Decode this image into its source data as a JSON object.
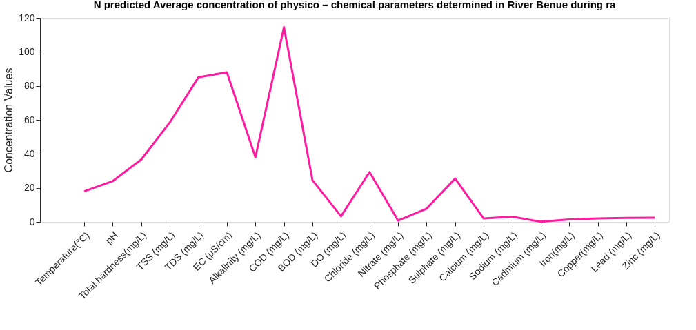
{
  "chart_data": {
    "type": "line",
    "title": "N predicted Average concentration of physico – chemical parameters determined in River Benue during ra",
    "ylabel": "Concentration Values",
    "categories": [
      "Temperature(°C)",
      "pH",
      "Total hardness(mg/L)",
      "TSS (mg/L)",
      "TDS (mg/L)",
      "EC (µS/cm)",
      "Alkalinity (mg/L)",
      "COD (mg/L)",
      "BOD (mg/L)",
      "DO (mg/L)",
      "Chloride (mg/L)",
      "Nitrate (mg/L)",
      "Phosphate (mg/L)",
      "Sulphate (mg/L)",
      "Calcium (mg/L)",
      "Sodium (mg/L)",
      "Cadmium (mg/L)",
      "Iron(mg/L)",
      "Copper(mg/L)",
      "Lead (mg/L)",
      "Zinc (mg/L)"
    ],
    "series": [
      {
        "color": "#ff1aa0",
        "values": [
          18,
          24,
          36.7,
          58.5,
          85,
          88,
          38,
          114.5,
          24.5,
          3.3,
          29.3,
          0.8,
          7.8,
          25.5,
          2,
          3,
          0.1,
          1.4,
          2,
          2.3,
          2.4
        ]
      }
    ],
    "ylim": [
      0,
      120
    ],
    "yticks": [
      0,
      20,
      40,
      60,
      80,
      100,
      120
    ],
    "grid": false,
    "marker": "none",
    "line_style": "solid"
  }
}
